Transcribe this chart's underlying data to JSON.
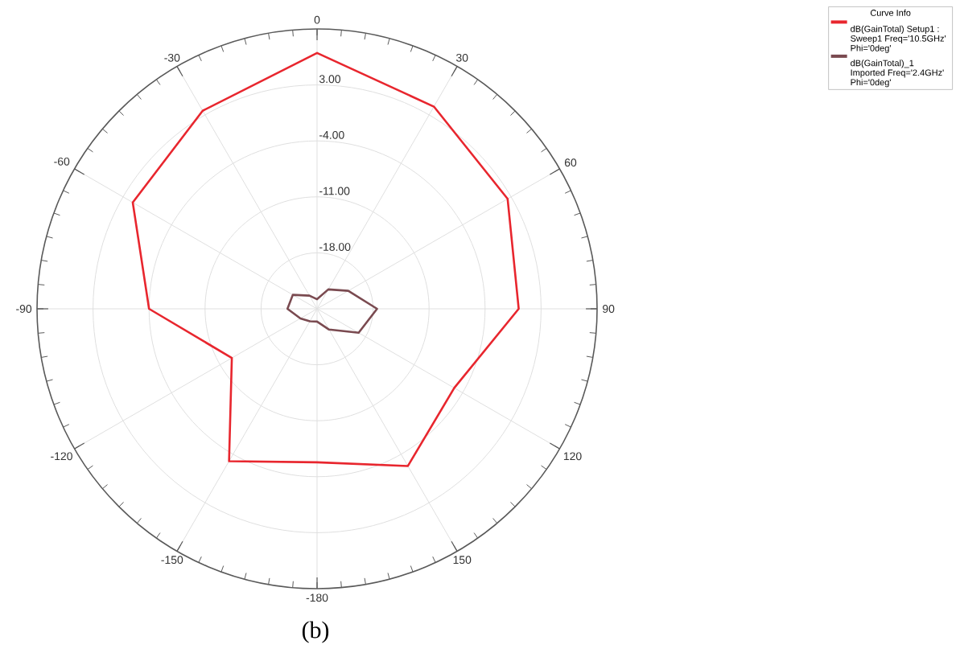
{
  "chart_data": {
    "type": "radar",
    "categories": [
      "0",
      "30",
      "60",
      "90",
      "120",
      "150",
      "-180",
      "-150",
      "-120",
      "-90",
      "-60",
      "-30"
    ],
    "ylim": [
      -25,
      10
    ],
    "yticks": [
      {
        "value": -18,
        "label": "-18.00"
      },
      {
        "value": -11,
        "label": "-11.00"
      },
      {
        "value": -4,
        "label": "-4.00"
      },
      {
        "value": 3,
        "label": "3.00"
      }
    ],
    "grid": true,
    "legend": "top right",
    "legend_title": "Curve Info",
    "series": [
      {
        "name": "dB(GainTotal) Setup1 : Sweep1 Freq='10.5GHz' Phi='0deg'",
        "color": "#e8262e",
        "values": [
          7.0,
          4.2,
          2.5,
          0.2,
          -5.2,
          -2.3,
          -5.8,
          -3.0,
          -12.7,
          -4.0,
          1.6,
          3.6
        ]
      },
      {
        "name": "dB(GainTotal)_1 Imported Freq='2.4GHz' Phi='0deg'",
        "color": "#7a4a50",
        "values": [
          -23.8,
          -22.2,
          -20.5,
          -17.5,
          -19.0,
          -22.0,
          -23.4,
          -23.2,
          -22.6,
          -21.3,
          -21.5,
          -23.1
        ]
      }
    ],
    "annotations": [
      "(b)"
    ]
  }
}
